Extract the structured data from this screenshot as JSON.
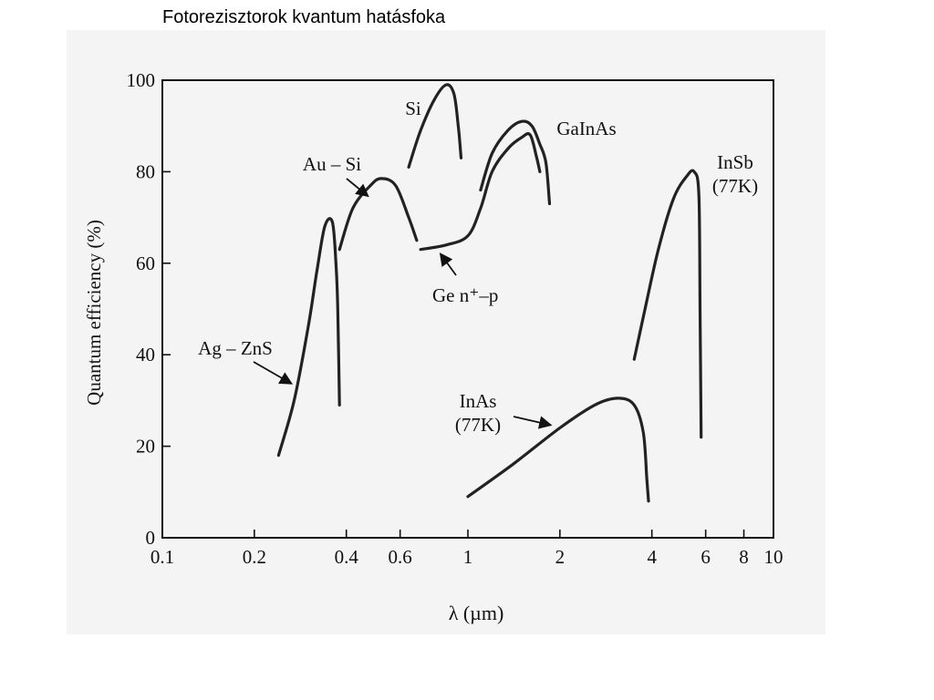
{
  "slide_title": "Fotorezisztorok  kvantum hatásfoka",
  "chart_data": {
    "type": "line",
    "title": "",
    "xlabel": "λ (µm)",
    "ylabel": "Quantum efficiency (%)",
    "xscale": "log",
    "xlim": [
      0.1,
      10
    ],
    "ylim": [
      0,
      100
    ],
    "x_ticks": [
      {
        "value": 0.1,
        "label": "0.1"
      },
      {
        "value": 0.2,
        "label": "0.2"
      },
      {
        "value": 0.4,
        "label": "0.4"
      },
      {
        "value": 0.6,
        "label": "0.6"
      },
      {
        "value": 1,
        "label": "1"
      },
      {
        "value": 2,
        "label": "2"
      },
      {
        "value": 4,
        "label": "4"
      },
      {
        "value": 6,
        "label": "6"
      },
      {
        "value": 8,
        "label": "8"
      },
      {
        "value": 10,
        "label": "10"
      }
    ],
    "y_ticks": [
      {
        "value": 0,
        "label": "0"
      },
      {
        "value": 20,
        "label": "20"
      },
      {
        "value": 40,
        "label": "40"
      },
      {
        "value": 60,
        "label": "60"
      },
      {
        "value": 80,
        "label": "80"
      },
      {
        "value": 100,
        "label": "100"
      }
    ],
    "grid": false,
    "series": [
      {
        "name": "Ag – ZnS",
        "points": [
          [
            0.24,
            18
          ],
          [
            0.27,
            30
          ],
          [
            0.3,
            46
          ],
          [
            0.32,
            58
          ],
          [
            0.34,
            68
          ],
          [
            0.36,
            69
          ],
          [
            0.37,
            60
          ],
          [
            0.375,
            50
          ],
          [
            0.38,
            29
          ]
        ]
      },
      {
        "name": "Au – Si",
        "points": [
          [
            0.38,
            63
          ],
          [
            0.42,
            72
          ],
          [
            0.48,
            77
          ],
          [
            0.52,
            78.5
          ],
          [
            0.58,
            77
          ],
          [
            0.64,
            70
          ],
          [
            0.68,
            65
          ]
        ]
      },
      {
        "name": "Si",
        "points": [
          [
            0.64,
            81
          ],
          [
            0.7,
            89
          ],
          [
            0.78,
            96
          ],
          [
            0.85,
            99
          ],
          [
            0.9,
            97
          ],
          [
            0.93,
            90
          ],
          [
            0.95,
            83
          ]
        ]
      },
      {
        "name": "Ge n⁺–p",
        "points": [
          [
            0.7,
            63
          ],
          [
            0.85,
            64
          ],
          [
            1.0,
            66
          ],
          [
            1.1,
            72
          ],
          [
            1.2,
            80
          ],
          [
            1.35,
            85
          ],
          [
            1.5,
            87.5
          ],
          [
            1.6,
            88
          ],
          [
            1.68,
            83
          ],
          [
            1.72,
            80
          ]
        ]
      },
      {
        "name": "GaInAs",
        "points": [
          [
            1.1,
            76
          ],
          [
            1.2,
            84
          ],
          [
            1.35,
            89
          ],
          [
            1.5,
            91
          ],
          [
            1.62,
            90
          ],
          [
            1.72,
            86
          ],
          [
            1.8,
            82
          ],
          [
            1.85,
            73
          ]
        ]
      },
      {
        "name": "InAs (77K)",
        "points": [
          [
            1.0,
            9
          ],
          [
            1.4,
            16
          ],
          [
            2.0,
            24
          ],
          [
            2.6,
            29
          ],
          [
            3.1,
            30.5
          ],
          [
            3.5,
            29
          ],
          [
            3.75,
            23
          ],
          [
            3.85,
            13
          ],
          [
            3.9,
            8
          ]
        ]
      },
      {
        "name": "InSb (77K)",
        "points": [
          [
            3.5,
            39
          ],
          [
            3.8,
            50
          ],
          [
            4.2,
            63
          ],
          [
            4.7,
            74
          ],
          [
            5.2,
            79
          ],
          [
            5.5,
            80
          ],
          [
            5.7,
            75
          ],
          [
            5.75,
            50
          ],
          [
            5.8,
            22
          ]
        ]
      }
    ],
    "annotations": [
      {
        "id": "si",
        "lines": [
          "Si"
        ],
        "series": "Si"
      },
      {
        "id": "au-si",
        "lines": [
          "Au – Si"
        ],
        "series": "Au – Si"
      },
      {
        "id": "gainas",
        "lines": [
          "GaInAs"
        ],
        "series": "GaInAs"
      },
      {
        "id": "insb",
        "lines": [
          "InSb",
          "(77K)"
        ],
        "series": "InSb (77K)"
      },
      {
        "id": "ge",
        "lines": [
          "Ge n⁺–p"
        ],
        "series": "Ge n⁺–p"
      },
      {
        "id": "ag-zns",
        "lines": [
          "Ag – ZnS"
        ],
        "series": "Ag – ZnS"
      },
      {
        "id": "inas",
        "lines": [
          "InAs",
          "(77K)"
        ],
        "series": "InAs (77K)"
      }
    ]
  }
}
